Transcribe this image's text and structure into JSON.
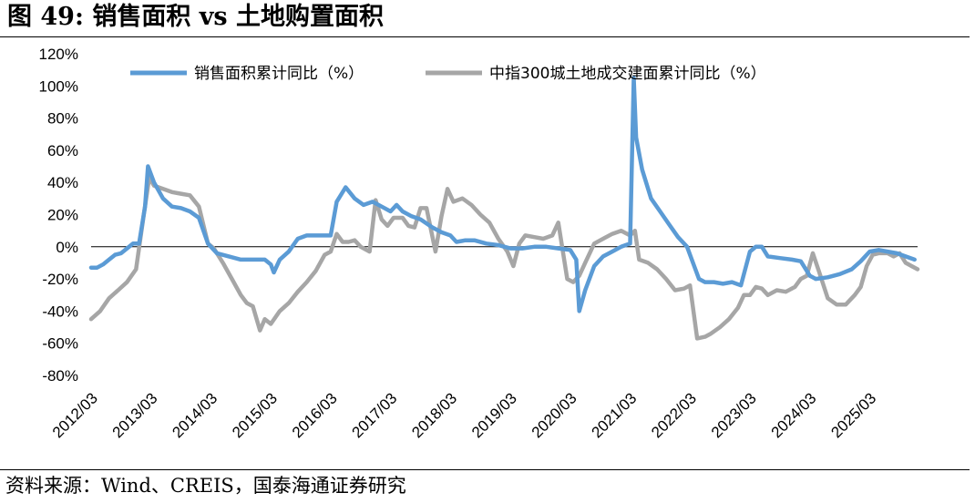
{
  "figure": {
    "title": "图 49:  销售面积 vs 土地购置面积",
    "source": "资料来源：Wind、CREIS，国泰海通证券研究"
  },
  "chart_data": {
    "type": "line",
    "y_ticks": [
      "120%",
      "100%",
      "80%",
      "60%",
      "40%",
      "20%",
      "0%",
      "-20%",
      "-40%",
      "-60%",
      "-80%"
    ],
    "ylim": [
      -80,
      120
    ],
    "x_ticks": [
      "2012/03",
      "2013/03",
      "2014/03",
      "2015/03",
      "2016/03",
      "2017/03",
      "2018/03",
      "2019/03",
      "2020/03",
      "2021/03",
      "2022/03",
      "2023/03",
      "2024/03",
      "2025/03"
    ],
    "xlim": [
      2012.0,
      2025.8
    ],
    "legend_position": "top",
    "series": [
      {
        "name": "销售面积累计同比（%）",
        "color": "#5b9bd5",
        "points": [
          [
            2012.0,
            -13
          ],
          [
            2012.1,
            -13
          ],
          [
            2012.2,
            -11
          ],
          [
            2012.3,
            -8
          ],
          [
            2012.4,
            -5
          ],
          [
            2012.5,
            -4
          ],
          [
            2012.6,
            -1
          ],
          [
            2012.7,
            2
          ],
          [
            2012.8,
            2
          ],
          [
            2012.9,
            25
          ],
          [
            2012.95,
            50
          ],
          [
            2013.05,
            40
          ],
          [
            2013.2,
            30
          ],
          [
            2013.35,
            25
          ],
          [
            2013.5,
            24
          ],
          [
            2013.65,
            22
          ],
          [
            2013.8,
            18
          ],
          [
            2013.95,
            2
          ],
          [
            2014.1,
            -4
          ],
          [
            2014.3,
            -6
          ],
          [
            2014.5,
            -8
          ],
          [
            2014.7,
            -8
          ],
          [
            2014.9,
            -8
          ],
          [
            2015.0,
            -11
          ],
          [
            2015.05,
            -16
          ],
          [
            2015.15,
            -8
          ],
          [
            2015.3,
            -3
          ],
          [
            2015.45,
            5
          ],
          [
            2015.6,
            7
          ],
          [
            2015.75,
            7
          ],
          [
            2015.9,
            7
          ],
          [
            2016.0,
            7
          ],
          [
            2016.1,
            28
          ],
          [
            2016.25,
            37
          ],
          [
            2016.4,
            30
          ],
          [
            2016.55,
            26
          ],
          [
            2016.7,
            28
          ],
          [
            2016.85,
            25
          ],
          [
            2017.0,
            22
          ],
          [
            2017.1,
            26
          ],
          [
            2017.2,
            22
          ],
          [
            2017.35,
            19
          ],
          [
            2017.5,
            17
          ],
          [
            2017.7,
            12
          ],
          [
            2017.85,
            9
          ],
          [
            2018.0,
            7
          ],
          [
            2018.1,
            3
          ],
          [
            2018.25,
            4
          ],
          [
            2018.4,
            4
          ],
          [
            2018.6,
            2
          ],
          [
            2018.8,
            1
          ],
          [
            2019.0,
            -1
          ],
          [
            2019.2,
            -1
          ],
          [
            2019.4,
            0
          ],
          [
            2019.6,
            0
          ],
          [
            2019.8,
            -1
          ],
          [
            2020.0,
            -2
          ],
          [
            2020.1,
            -8
          ],
          [
            2020.15,
            -40
          ],
          [
            2020.25,
            -27
          ],
          [
            2020.4,
            -12
          ],
          [
            2020.55,
            -6
          ],
          [
            2020.7,
            -3
          ],
          [
            2020.85,
            0
          ],
          [
            2021.0,
            2
          ],
          [
            2021.06,
            105
          ],
          [
            2021.1,
            68
          ],
          [
            2021.2,
            48
          ],
          [
            2021.35,
            30
          ],
          [
            2021.5,
            22
          ],
          [
            2021.65,
            14
          ],
          [
            2021.8,
            6
          ],
          [
            2021.95,
            0
          ],
          [
            2022.05,
            -10
          ],
          [
            2022.15,
            -20
          ],
          [
            2022.25,
            -22
          ],
          [
            2022.4,
            -22
          ],
          [
            2022.55,
            -23
          ],
          [
            2022.7,
            -22
          ],
          [
            2022.85,
            -24
          ],
          [
            2023.0,
            -3
          ],
          [
            2023.1,
            0
          ],
          [
            2023.2,
            0
          ],
          [
            2023.3,
            -6
          ],
          [
            2023.5,
            -7
          ],
          [
            2023.7,
            -8
          ],
          [
            2023.85,
            -9
          ],
          [
            2024.0,
            -18
          ],
          [
            2024.1,
            -20
          ],
          [
            2024.3,
            -19
          ],
          [
            2024.5,
            -17
          ],
          [
            2024.7,
            -14
          ],
          [
            2024.85,
            -9
          ],
          [
            2025.0,
            -3
          ],
          [
            2025.15,
            -2
          ],
          [
            2025.3,
            -3
          ],
          [
            2025.45,
            -4
          ],
          [
            2025.6,
            -6
          ],
          [
            2025.75,
            -8
          ]
        ]
      },
      {
        "name": "中指300城土地成交建面累计同比（%）",
        "color": "#a6a6a6",
        "points": [
          [
            2012.0,
            -45
          ],
          [
            2012.15,
            -40
          ],
          [
            2012.3,
            -32
          ],
          [
            2012.45,
            -27
          ],
          [
            2012.6,
            -22
          ],
          [
            2012.75,
            -14
          ],
          [
            2012.88,
            20
          ],
          [
            2012.97,
            43
          ],
          [
            2013.05,
            38
          ],
          [
            2013.2,
            36
          ],
          [
            2013.35,
            34
          ],
          [
            2013.5,
            33
          ],
          [
            2013.65,
            32
          ],
          [
            2013.8,
            25
          ],
          [
            2013.95,
            2
          ],
          [
            2014.05,
            -1
          ],
          [
            2014.2,
            -10
          ],
          [
            2014.35,
            -20
          ],
          [
            2014.5,
            -30
          ],
          [
            2014.6,
            -35
          ],
          [
            2014.7,
            -37
          ],
          [
            2014.82,
            -52
          ],
          [
            2014.9,
            -45
          ],
          [
            2015.0,
            -48
          ],
          [
            2015.15,
            -40
          ],
          [
            2015.3,
            -35
          ],
          [
            2015.45,
            -28
          ],
          [
            2015.6,
            -22
          ],
          [
            2015.75,
            -15
          ],
          [
            2015.9,
            -5
          ],
          [
            2016.0,
            -3
          ],
          [
            2016.1,
            8
          ],
          [
            2016.2,
            3
          ],
          [
            2016.3,
            3
          ],
          [
            2016.4,
            4
          ],
          [
            2016.5,
            0
          ],
          [
            2016.65,
            -3
          ],
          [
            2016.75,
            29
          ],
          [
            2016.85,
            17
          ],
          [
            2016.95,
            13
          ],
          [
            2017.05,
            18
          ],
          [
            2017.2,
            18
          ],
          [
            2017.3,
            13
          ],
          [
            2017.4,
            12
          ],
          [
            2017.5,
            24
          ],
          [
            2017.6,
            24
          ],
          [
            2017.75,
            -3
          ],
          [
            2017.85,
            19
          ],
          [
            2017.95,
            36
          ],
          [
            2018.05,
            28
          ],
          [
            2018.2,
            30
          ],
          [
            2018.35,
            26
          ],
          [
            2018.5,
            20
          ],
          [
            2018.65,
            15
          ],
          [
            2018.8,
            5
          ],
          [
            2018.95,
            -3
          ],
          [
            2019.05,
            -12
          ],
          [
            2019.15,
            2
          ],
          [
            2019.25,
            7
          ],
          [
            2019.4,
            6
          ],
          [
            2019.55,
            5
          ],
          [
            2019.7,
            7
          ],
          [
            2019.8,
            15
          ],
          [
            2019.95,
            -20
          ],
          [
            2020.05,
            -22
          ],
          [
            2020.15,
            -18
          ],
          [
            2020.25,
            -10
          ],
          [
            2020.4,
            2
          ],
          [
            2020.55,
            5
          ],
          [
            2020.7,
            8
          ],
          [
            2020.85,
            10
          ],
          [
            2021.0,
            7
          ],
          [
            2021.08,
            10
          ],
          [
            2021.15,
            -8
          ],
          [
            2021.3,
            -10
          ],
          [
            2021.45,
            -14
          ],
          [
            2021.6,
            -20
          ],
          [
            2021.75,
            -27
          ],
          [
            2021.9,
            -26
          ],
          [
            2022.0,
            -24
          ],
          [
            2022.12,
            -57
          ],
          [
            2022.25,
            -56
          ],
          [
            2022.35,
            -54
          ],
          [
            2022.5,
            -50
          ],
          [
            2022.65,
            -45
          ],
          [
            2022.8,
            -38
          ],
          [
            2022.9,
            -30
          ],
          [
            2023.0,
            -30
          ],
          [
            2023.1,
            -25
          ],
          [
            2023.2,
            -26
          ],
          [
            2023.3,
            -30
          ],
          [
            2023.45,
            -27
          ],
          [
            2023.6,
            -28
          ],
          [
            2023.75,
            -25
          ],
          [
            2023.85,
            -20
          ],
          [
            2023.95,
            -18
          ],
          [
            2024.05,
            -4
          ],
          [
            2024.15,
            -15
          ],
          [
            2024.3,
            -32
          ],
          [
            2024.45,
            -36
          ],
          [
            2024.6,
            -36
          ],
          [
            2024.75,
            -30
          ],
          [
            2024.85,
            -25
          ],
          [
            2024.95,
            -12
          ],
          [
            2025.05,
            -5
          ],
          [
            2025.15,
            -4
          ],
          [
            2025.3,
            -4
          ],
          [
            2025.4,
            -6
          ],
          [
            2025.5,
            -4
          ],
          [
            2025.6,
            -10
          ],
          [
            2025.7,
            -12
          ],
          [
            2025.8,
            -14
          ]
        ]
      }
    ]
  }
}
